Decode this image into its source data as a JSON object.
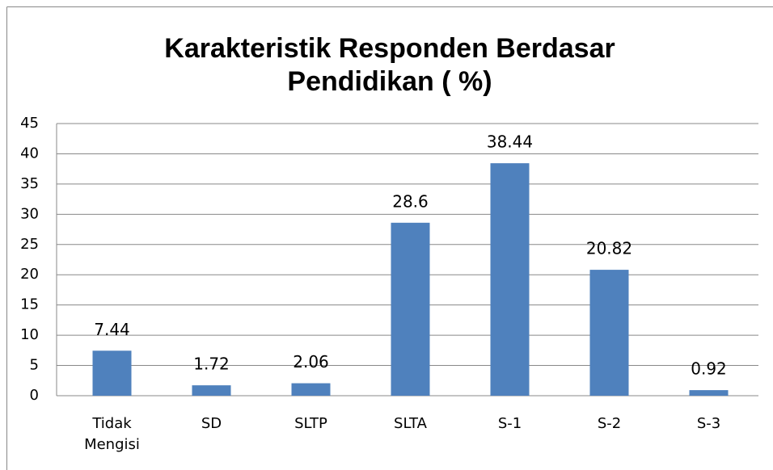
{
  "chart_data": {
    "type": "bar",
    "title": [
      "Karakteristik Responden Berdasar",
      "Pendidikan ( %)"
    ],
    "categories": [
      "Tidak Mengisi",
      "SD",
      "SLTP",
      "SLTA",
      "S-1",
      "S-2",
      "S-3"
    ],
    "values": [
      7.44,
      1.72,
      2.06,
      28.6,
      38.44,
      20.82,
      0.92
    ],
    "color": "#4f81bd",
    "ylim": [
      0,
      45
    ],
    "yticks": [
      0,
      5,
      10,
      15,
      20,
      25,
      30,
      35,
      40,
      45
    ],
    "grid": true
  }
}
